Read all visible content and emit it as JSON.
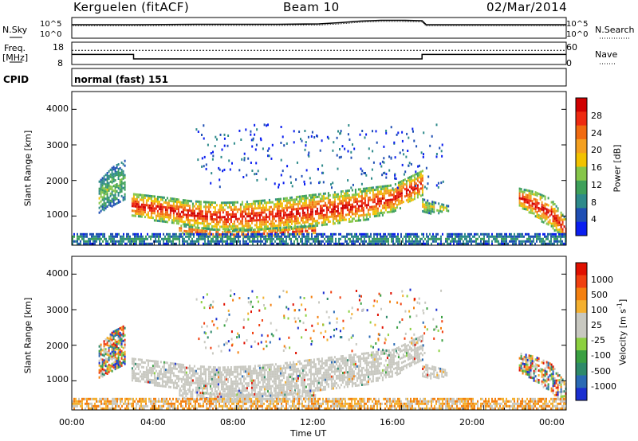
{
  "header": {
    "station": "Kerguelen (fitACF)",
    "beam": "Beam 10",
    "date": "02/Mar/2014"
  },
  "top_panels": {
    "nsky_label": "N.Sky",
    "nsky_ticks": [
      "10^5",
      "10^0"
    ],
    "nsearch_label": "N.Search",
    "nsearch_ticks": [
      "10^5",
      "10^0"
    ],
    "freq_label": "Freq.",
    "freq_unit": "[MHz]",
    "freq_ticks": [
      "18",
      "8"
    ],
    "nave_label": "Nave",
    "nave_ticks": [
      "60",
      "0"
    ],
    "cpid_label": "CPID",
    "cpid_value": "normal (fast) 151",
    "freq_series": {
      "x_hours": [
        0,
        3,
        3,
        17,
        17,
        24
      ],
      "y_mhz": [
        12.5,
        12.5,
        10.5,
        10.5,
        12.5,
        12.5
      ]
    },
    "nave_series": {
      "x_hours": [
        0,
        24
      ],
      "y": [
        38,
        38
      ]
    },
    "nsky_series": {
      "x_hours": [
        0,
        3,
        6,
        10,
        12,
        13,
        14,
        15,
        16,
        17,
        17.2,
        24
      ],
      "y_log": [
        3.4,
        3.4,
        3.5,
        3.5,
        3.6,
        3.9,
        4.3,
        4.5,
        4.5,
        4.4,
        3.4,
        3.4
      ]
    }
  },
  "chart_data": [
    {
      "type": "heatmap",
      "name": "power-panel",
      "ylabel": "Slant Range [km]",
      "xlabel": "",
      "x_ticks": [
        "00:00",
        "04:00",
        "08:00",
        "12:00",
        "16:00",
        "20:00",
        "00:00"
      ],
      "y_ticks": [
        "1000",
        "2000",
        "3000",
        "4000"
      ],
      "xlim_hours": [
        0,
        24
      ],
      "ylim_km": [
        180,
        4500
      ],
      "colorbar_label": "Power [dB]",
      "colorbar_ticks": [
        "4",
        "8",
        "12",
        "16",
        "20",
        "24",
        "28"
      ],
      "colorbar_colors": [
        "#0a1ef0",
        "#1f4fb4",
        "#2e8a8a",
        "#3ea05a",
        "#86c64a",
        "#f2c200",
        "#f4a020",
        "#f06a10",
        "#ee2a10",
        "#d00000"
      ],
      "echo_regions": [
        {
          "desc": "main-band",
          "t0": 2.9,
          "t1": 17.0,
          "r_low": [
            1000,
            880,
            740,
            600,
            590,
            620,
            680,
            760,
            900,
            1150,
            1600
          ],
          "r_high": [
            1650,
            1560,
            1450,
            1400,
            1430,
            1500,
            1600,
            1700,
            1800,
            1900,
            2300
          ],
          "peak_db": 28
        },
        {
          "desc": "lower-arc",
          "t0": 5.2,
          "t1": 11.8,
          "r_low": [
            560,
            430,
            420,
            450,
            510
          ],
          "r_high": [
            760,
            650,
            640,
            700,
            760
          ],
          "peak_db": 26
        },
        {
          "desc": "early-patch",
          "t0": 1.3,
          "t1": 2.6,
          "r_low": [
            1100,
            1300,
            1500
          ],
          "r_high": [
            2000,
            2400,
            2600
          ],
          "peak_db": 12
        },
        {
          "desc": "post-band",
          "t0": 17.0,
          "t1": 18.3,
          "r_low": [
            1100,
            1100,
            1150
          ],
          "r_high": [
            1500,
            1400,
            1300
          ],
          "peak_db": 16
        },
        {
          "desc": "late-patch",
          "t0": 21.7,
          "t1": 24.0,
          "r_low": [
            1300,
            1000,
            700,
            300
          ],
          "r_high": [
            1800,
            1700,
            1500,
            900
          ],
          "peak_db": 28
        },
        {
          "desc": "ground-strip",
          "t0": 0.0,
          "t1": 24.0,
          "r_low": [
            240
          ],
          "r_high": [
            520
          ],
          "peak_db": 8
        }
      ]
    },
    {
      "type": "heatmap",
      "name": "velocity-panel",
      "ylabel": "Slant Range [km]",
      "xlabel": "Time UT",
      "x_ticks": [
        "00:00",
        "04:00",
        "08:00",
        "12:00",
        "16:00",
        "20:00",
        "00:00"
      ],
      "y_ticks": [
        "1000",
        "2000",
        "3000",
        "4000"
      ],
      "xlim_hours": [
        0,
        24
      ],
      "ylim_km": [
        180,
        4500
      ],
      "colorbar_label": "Velocity [m s",
      "colorbar_label_exp": "-1",
      "colorbar_label_close": "]",
      "colorbar_ticks": [
        "1000",
        "500",
        "100",
        "25",
        "-25",
        "-100",
        "-500",
        "-1000"
      ],
      "colorbar_colors": [
        "#1a2fd0",
        "#2a6ab4",
        "#2e8a6a",
        "#3aa042",
        "#8cd040",
        "#c8c8c0",
        "#c8c8c0",
        "#f4b030",
        "#f48010",
        "#f04010",
        "#e01000"
      ],
      "ground_scatter_color": "#c8c8c0"
    }
  ]
}
